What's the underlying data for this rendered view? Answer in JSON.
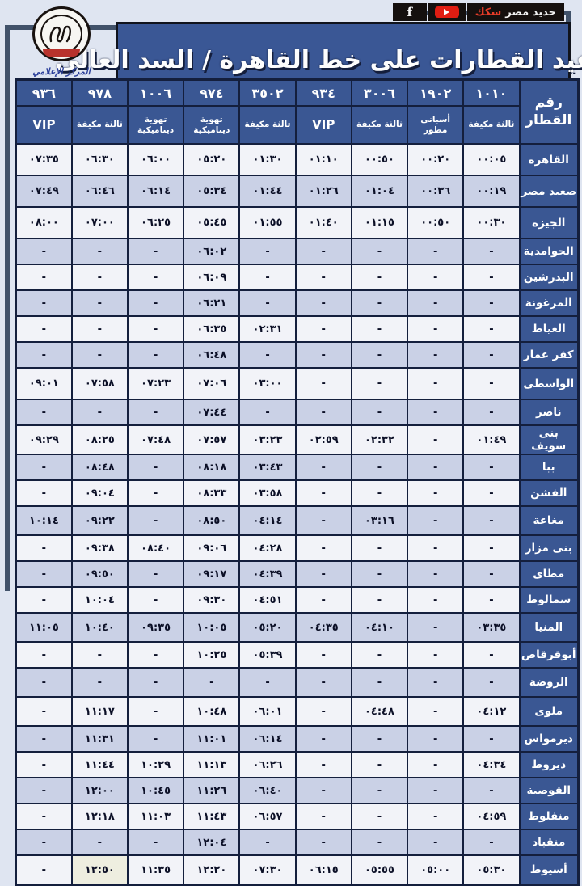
{
  "banner": {
    "brand_red": "سكك",
    "brand_white": "حديد مصر",
    "facebook_glyph": "f"
  },
  "logo": {
    "caption": "المركز الإعلامي"
  },
  "header": {
    "title": "مواعيد القطارات على خط القاهرة / السد العالى"
  },
  "table": {
    "corner_label": "رقم القطار",
    "trains": [
      {
        "number": "١٠١٠",
        "class": "ثالثة مكيفة"
      },
      {
        "number": "١٩٠٢",
        "class": "أسبانى مطور"
      },
      {
        "number": "٣٠٠٦",
        "class": "ثالثة مكيفة"
      },
      {
        "number": "٩٣٤",
        "class": "VIP"
      },
      {
        "number": "٣٥٠٢",
        "class": "ثالثة مكيفة"
      },
      {
        "number": "٩٧٤",
        "class": "تهوية ديناميكية"
      },
      {
        "number": "١٠٠٦",
        "class": "تهوية ديناميكية"
      },
      {
        "number": "٩٧٨",
        "class": "ثالثة مكيفة"
      },
      {
        "number": "٩٣٦",
        "class": "VIP"
      }
    ],
    "rows": [
      {
        "station": "القاهرة",
        "size": "tall",
        "times": [
          "٠٠:٠٥",
          "٠٠:٢٠",
          "٠٠:٥٠",
          "٠١:١٠",
          "٠١:٣٠",
          "٠٥:٢٠",
          "٠٦:٠٠",
          "٠٦:٣٠",
          "٠٧:٣٥"
        ]
      },
      {
        "station": "صعيد مصر",
        "size": "tall",
        "times": [
          "٠٠:١٩",
          "٠٠:٣٦",
          "٠١:٠٤",
          "٠١:٢٦",
          "٠١:٤٤",
          "٠٥:٣٤",
          "٠٦:١٤",
          "٠٦:٤٦",
          "٠٧:٤٩"
        ]
      },
      {
        "station": "الجيزة",
        "size": "tall",
        "times": [
          "٠٠:٣٠",
          "٠٠:٥٠",
          "٠١:١٥",
          "٠١:٤٠",
          "٠١:٥٥",
          "٠٥:٤٥",
          "٠٦:٢٥",
          "٠٧:٠٠",
          "٠٨:٠٠"
        ]
      },
      {
        "station": "الحوامدية",
        "size": "norm",
        "times": [
          "-",
          "-",
          "-",
          "-",
          "-",
          "٠٦:٠٢",
          "-",
          "-",
          "-"
        ]
      },
      {
        "station": "البدرشين",
        "size": "norm",
        "times": [
          "-",
          "-",
          "-",
          "-",
          "-",
          "٠٦:٠٩",
          "-",
          "-",
          "-"
        ]
      },
      {
        "station": "المزغونة",
        "size": "norm",
        "times": [
          "-",
          "-",
          "-",
          "-",
          "-",
          "٠٦:٢١",
          "-",
          "-",
          "-"
        ]
      },
      {
        "station": "العياط",
        "size": "norm",
        "times": [
          "-",
          "-",
          "-",
          "-",
          "٠٢:٣١",
          "٠٦:٣٥",
          "-",
          "-",
          "-"
        ]
      },
      {
        "station": "كفر عمار",
        "size": "norm",
        "times": [
          "-",
          "-",
          "-",
          "-",
          "-",
          "٠٦:٤٨",
          "-",
          "-",
          "-"
        ]
      },
      {
        "station": "الواسطى",
        "size": "tall",
        "times": [
          "-",
          "-",
          "-",
          "-",
          "٠٣:٠٠",
          "٠٧:٠٦",
          "٠٧:٢٣",
          "٠٧:٥٨",
          "٠٩:٠١"
        ]
      },
      {
        "station": "ناصر",
        "size": "norm",
        "times": [
          "-",
          "-",
          "-",
          "-",
          "-",
          "٠٧:٤٤",
          "-",
          "-",
          "-"
        ]
      },
      {
        "station": "بنى سويف",
        "size": "mid",
        "times": [
          "٠١:٤٩",
          "-",
          "٠٢:٣٢",
          "٠٢:٥٩",
          "٠٣:٢٣",
          "٠٧:٥٧",
          "٠٧:٤٨",
          "٠٨:٢٥",
          "٠٩:٢٩"
        ]
      },
      {
        "station": "ببا",
        "size": "norm",
        "times": [
          "-",
          "-",
          "-",
          "-",
          "٠٣:٤٣",
          "٠٨:١٨",
          "-",
          "٠٨:٤٨",
          "-"
        ]
      },
      {
        "station": "الفشن",
        "size": "norm",
        "times": [
          "-",
          "-",
          "-",
          "-",
          "٠٣:٥٨",
          "٠٨:٣٣",
          "-",
          "٠٩:٠٤",
          "-"
        ]
      },
      {
        "station": "مغاغة",
        "size": "mid",
        "times": [
          "-",
          "-",
          "٠٣:١٦",
          "-",
          "٠٤:١٤",
          "٠٨:٥٠",
          "-",
          "٠٩:٢٢",
          "١٠:١٤"
        ]
      },
      {
        "station": "بنى مزار",
        "size": "norm",
        "times": [
          "-",
          "-",
          "-",
          "-",
          "٠٤:٢٨",
          "٠٩:٠٦",
          "٠٨:٤٠",
          "٠٩:٣٨",
          "-"
        ]
      },
      {
        "station": "مطاى",
        "size": "norm",
        "times": [
          "-",
          "-",
          "-",
          "-",
          "٠٤:٣٩",
          "٠٩:١٧",
          "-",
          "٠٩:٥٠",
          "-"
        ]
      },
      {
        "station": "سمالوط",
        "size": "norm",
        "times": [
          "-",
          "-",
          "-",
          "-",
          "٠٤:٥١",
          "٠٩:٣٠",
          "-",
          "١٠:٠٤",
          "-"
        ]
      },
      {
        "station": "المنيا",
        "size": "mid",
        "times": [
          "٠٣:٣٥",
          "-",
          "٠٤:١٠",
          "٠٤:٣٥",
          "٠٥:٢٠",
          "١٠:٠٥",
          "٠٩:٣٥",
          "١٠:٤٠",
          "١١:٠٥"
        ]
      },
      {
        "station": "أبوقرقاص",
        "size": "norm",
        "times": [
          "-",
          "-",
          "-",
          "-",
          "٠٥:٣٩",
          "١٠:٢٥",
          "-",
          "-",
          "-"
        ]
      },
      {
        "station": "الروضة",
        "size": "mid",
        "times": [
          "-",
          "-",
          "-",
          "-",
          "-",
          "-",
          "-",
          "-",
          "-"
        ]
      },
      {
        "station": "ملوى",
        "size": "mid",
        "times": [
          "٠٤:١٢",
          "-",
          "٠٤:٤٨",
          "-",
          "٠٦:٠١",
          "١٠:٤٨",
          "-",
          "١١:١٧",
          "-"
        ]
      },
      {
        "station": "ديرمواس",
        "size": "norm",
        "times": [
          "-",
          "-",
          "-",
          "-",
          "٠٦:١٤",
          "١١:٠١",
          "-",
          "١١:٣١",
          "-"
        ]
      },
      {
        "station": "ديروط",
        "size": "norm",
        "times": [
          "٠٤:٣٤",
          "-",
          "-",
          "-",
          "٠٦:٢٦",
          "١١:١٣",
          "١٠:٢٩",
          "١١:٤٤",
          "-"
        ]
      },
      {
        "station": "القوصية",
        "size": "norm",
        "times": [
          "-",
          "-",
          "-",
          "-",
          "٠٦:٤٠",
          "١١:٢٦",
          "١٠:٤٥",
          "١٢:٠٠",
          "-"
        ]
      },
      {
        "station": "منفلوط",
        "size": "norm",
        "times": [
          "٠٤:٥٩",
          "-",
          "-",
          "-",
          "٠٦:٥٧",
          "١١:٤٣",
          "١١:٠٣",
          "١٢:١٨",
          "-"
        ]
      },
      {
        "station": "منقباد",
        "size": "norm",
        "times": [
          "-",
          "-",
          "-",
          "-",
          "-",
          "١٢:٠٤",
          "-",
          "-",
          "-"
        ]
      },
      {
        "station": "أسيوط",
        "size": "mid",
        "times": [
          "٠٥:٣٠",
          "٠٥:٠٠",
          "٠٥:٥٥",
          "٠٦:١٥",
          "٠٧:٣٠",
          "١٢:٢٠",
          "١١:٣٥",
          "١٢:٥٠",
          "-"
        ]
      }
    ],
    "highlight_cell": {
      "station": "أسيوط",
      "train_index": 7
    }
  }
}
